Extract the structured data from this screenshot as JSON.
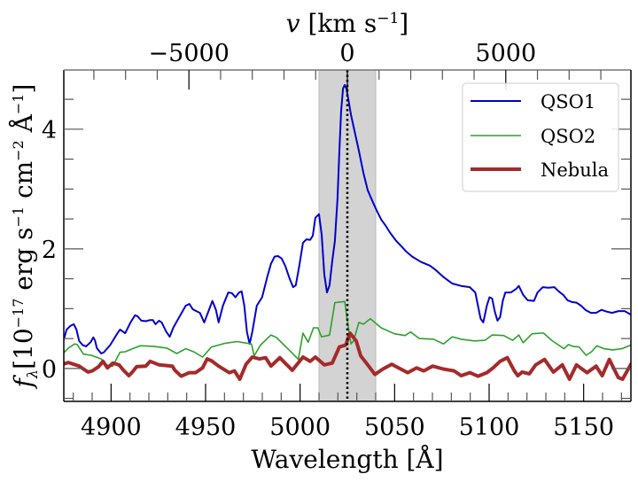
{
  "chart_data": {
    "type": "line",
    "title": "",
    "xlabel": "Wavelength [Å]",
    "ylabel": "f_λ [10^-17 erg s^-1 cm^-2 Å^-1]",
    "ylabel_parts": {
      "f": "f",
      "lambda": "λ",
      "bracket_open": "[10",
      "exp1": "−17",
      "erg": " erg s",
      "exp2": "−1",
      "cm": " cm",
      "exp3": "−2",
      "ang": " Å",
      "exp4": "−1",
      "bracket_close": "]"
    },
    "top_xlabel": "v [km s^-1]",
    "top_xlabel_parts": {
      "v": "v",
      "unit": " [km s",
      "exp": "−1",
      "close": "]"
    },
    "xlim": [
      4875,
      5175
    ],
    "ylim": [
      -0.55,
      4.99
    ],
    "xticks": [
      4900,
      4950,
      5000,
      5050,
      5100,
      5150
    ],
    "xtick_labels": [
      "4900",
      "4950",
      "5000",
      "5050",
      "5100",
      "5150"
    ],
    "xminor_step": 10,
    "yticks": [
      0,
      2,
      4
    ],
    "ytick_labels": [
      "0",
      "2",
      "4"
    ],
    "yminor_step": 0.5,
    "top_axis": {
      "reference_wavelength": 5025,
      "ticks": [
        -5000,
        0,
        5000
      ],
      "tick_labels": [
        "−5000",
        "0",
        "5000"
      ],
      "minor_step": 1000
    },
    "shaded_region": {
      "x0": 5010,
      "x1": 5040,
      "color": "#d3d3d3"
    },
    "vline": {
      "x": 5025,
      "style": "dotted",
      "color": "#000000"
    },
    "grid": false,
    "legend": {
      "placement": "top-right",
      "entries": [
        "QSO1",
        "QSO2",
        "Nebula"
      ]
    },
    "series": [
      {
        "name": "QSO1",
        "color": "#0000cc",
        "x": [
          4874.6,
          4876.5,
          4878.4,
          4880.3,
          4881.7,
          4883.1,
          4885.0,
          4886.8,
          4889.2,
          4890.6,
          4891.5,
          4892.5,
          4894.8,
          4896.2,
          4899.5,
          4902.8,
          4904.7,
          4907.5,
          4910.3,
          4912.7,
          4914.1,
          4916.0,
          4918.3,
          4920.7,
          4922.1,
          4923.5,
          4925.4,
          4926.8,
          4929.1,
          4931.0,
          4932.9,
          4935.2,
          4939.5,
          4941.4,
          4943.2,
          4945.1,
          4947.0,
          4949.3,
          4953.6,
          4955.5,
          4956.9,
          4959.2,
          4962.0,
          4963.9,
          4965.8,
          4967.7,
          4969.1,
          4970.5,
          4971.9,
          4973.3,
          4974.7,
          4977.1,
          4979.9,
          4982.7,
          4984.6,
          4986.5,
          4988.3,
          4990.2,
          4992.1,
          4994.5,
          4996.3,
          4997.7,
          4999.6,
          5001.5,
          5003.4,
          5005.3,
          5006.7,
          5008.1,
          5010.0,
          5011.4,
          5012.8,
          5014.2,
          5015.6,
          5017.0,
          5018.4,
          5019.8,
          5020.8,
          5021.7,
          5022.7,
          5023.6,
          5024.5,
          5025.5,
          5026.9,
          5028.8,
          5031.1,
          5033.5,
          5035.8,
          5038.2,
          5040.5,
          5042.9,
          5045.2,
          5047.6,
          5050.9,
          5053.7,
          5056.0,
          5059.3,
          5064.0,
          5068.7,
          5072.0,
          5075.8,
          5080.5,
          5085.2,
          5089.8,
          5092.7,
          5094.1,
          5095.5,
          5096.9,
          5098.8,
          5100.2,
          5101.6,
          5103.0,
          5104.4,
          5105.8,
          5107.2,
          5108.6,
          5111.5,
          5114.3,
          5115.7,
          5118.0,
          5120.4,
          5123.7,
          5125.6,
          5128.4,
          5131.3,
          5134.5,
          5136.8,
          5139.2,
          5141.5,
          5143.9,
          5146.2,
          5148.6,
          5150.9,
          5153.8,
          5156.6,
          5159.4,
          5162.2,
          5165.0,
          5168.4,
          5171.7,
          5175.0
        ],
        "y": [
          0.44,
          0.65,
          0.71,
          0.74,
          0.65,
          0.46,
          0.39,
          0.37,
          0.44,
          0.52,
          0.47,
          0.34,
          0.25,
          0.27,
          0.39,
          0.56,
          0.65,
          0.59,
          0.77,
          0.89,
          0.87,
          0.8,
          0.79,
          0.81,
          0.81,
          0.74,
          0.8,
          0.77,
          0.62,
          0.53,
          0.68,
          0.81,
          1.05,
          1.08,
          0.99,
          0.96,
          0.93,
          0.77,
          1.13,
          0.98,
          0.77,
          1.05,
          1.27,
          1.26,
          1.19,
          1.27,
          1.29,
          1.05,
          0.61,
          0.41,
          0.61,
          1.05,
          1.19,
          1.54,
          1.75,
          1.87,
          1.88,
          1.84,
          1.72,
          1.5,
          1.36,
          1.39,
          1.72,
          2.1,
          2.16,
          2.15,
          2.22,
          2.52,
          2.58,
          2.24,
          1.57,
          1.27,
          1.39,
          1.79,
          2.13,
          2.84,
          3.64,
          4.31,
          4.68,
          4.74,
          4.68,
          4.5,
          4.24,
          3.97,
          3.64,
          3.27,
          2.98,
          2.8,
          2.64,
          2.49,
          2.39,
          2.27,
          2.13,
          2.04,
          1.96,
          1.87,
          1.78,
          1.72,
          1.64,
          1.53,
          1.42,
          1.38,
          1.36,
          1.27,
          1.05,
          0.83,
          0.77,
          1.05,
          1.19,
          1.17,
          0.95,
          0.8,
          0.86,
          1.13,
          1.27,
          1.27,
          1.33,
          1.38,
          1.23,
          1.14,
          1.13,
          1.27,
          1.36,
          1.35,
          1.36,
          1.29,
          1.23,
          1.14,
          1.11,
          1.1,
          1.05,
          0.98,
          0.93,
          0.93,
          0.98,
          0.95,
          0.93,
          0.96,
          0.96,
          0.9
        ]
      },
      {
        "name": "QSO2",
        "color": "#2ca02c",
        "x": [
          4874.6,
          4877.4,
          4880.7,
          4882.1,
          4885.4,
          4889.6,
          4894.8,
          4897.2,
          4899.1,
          4900.9,
          4904.7,
          4907.5,
          4912.2,
          4915.5,
          4922.5,
          4929.6,
          4934.7,
          4939.5,
          4943.7,
          4948.4,
          4953.1,
          4960.2,
          4966.7,
          4974.3,
          4975.7,
          4979.0,
          4984.6,
          4987.4,
          4995.4,
          4999.1,
          5001.5,
          5004.3,
          5007.1,
          5009.4,
          5011.3,
          5014.6,
          5015.6,
          5018.4,
          5023.6,
          5025.0,
          5026.9,
          5028.3,
          5031.1,
          5033.5,
          5037.2,
          5042.9,
          5049.9,
          5055.5,
          5058.4,
          5063.1,
          5070.6,
          5075.8,
          5080.5,
          5085.2,
          5092.2,
          5097.8,
          5101.6,
          5107.7,
          5112.4,
          5115.7,
          5118.0,
          5122.7,
          5127.4,
          5128.8,
          5133.1,
          5136.8,
          5139.6,
          5141.9,
          5144.3,
          5147.6,
          5151.3,
          5154.2,
          5157.0,
          5160.8,
          5165.4,
          5170.1,
          5175.0
        ],
        "y": [
          0.25,
          0.34,
          0.41,
          0.4,
          0.24,
          0.22,
          0.16,
          0.07,
          0.04,
          0.04,
          0.27,
          0.28,
          0.34,
          0.38,
          0.37,
          0.34,
          0.25,
          0.33,
          0.28,
          0.19,
          0.36,
          0.42,
          0.45,
          0.41,
          0.21,
          0.39,
          0.56,
          0.52,
          0.27,
          0.15,
          0.59,
          0.44,
          0.68,
          0.68,
          0.53,
          0.55,
          0.56,
          1.1,
          1.12,
          0.8,
          0.41,
          0.46,
          0.77,
          0.74,
          0.83,
          0.68,
          0.58,
          0.55,
          0.61,
          0.5,
          0.49,
          0.41,
          0.53,
          0.49,
          0.46,
          0.47,
          0.56,
          0.55,
          0.47,
          0.56,
          0.43,
          0.58,
          0.59,
          0.59,
          0.47,
          0.39,
          0.33,
          0.4,
          0.37,
          0.36,
          0.22,
          0.28,
          0.38,
          0.33,
          0.31,
          0.33,
          0.39
        ]
      },
      {
        "name": "Nebula",
        "color": "#a52a2a",
        "x": [
          4874.6,
          4877.4,
          4883.1,
          4887.8,
          4890.1,
          4893.4,
          4895.7,
          4898.1,
          4900.9,
          4904.2,
          4906.6,
          4909.4,
          4911.3,
          4913.6,
          4918.3,
          4920.7,
          4925.4,
          4932.4,
          4933.8,
          4937.1,
          4941.4,
          4944.7,
          4948.4,
          4950.8,
          4953.1,
          4956.9,
          4962.5,
          4965.3,
          4968.1,
          4971.4,
          4974.7,
          4978.5,
          4981.8,
          4984.6,
          4989.3,
          4992.1,
          4995.9,
          5001.5,
          5005.3,
          5008.1,
          5012.8,
          5017.0,
          5020.8,
          5024.1,
          5026.4,
          5029.7,
          5032.1,
          5035.8,
          5039.6,
          5043.8,
          5048.5,
          5053.2,
          5056.9,
          5061.6,
          5065.4,
          5070.1,
          5075.8,
          5081.5,
          5085.2,
          5089.8,
          5094.1,
          5098.8,
          5102.1,
          5105.8,
          5109.6,
          5113.3,
          5115.2,
          5117.5,
          5121.3,
          5124.6,
          5129.3,
          5134.0,
          5138.7,
          5142.5,
          5146.2,
          5151.8,
          5156.6,
          5159.8,
          5163.6,
          5168.3,
          5170.6,
          5175.0
        ],
        "y": [
          0.07,
          0.1,
          0.04,
          -0.06,
          -0.04,
          0.03,
          0.12,
          0.01,
          0.09,
          0.06,
          -0.03,
          -0.12,
          -0.06,
          0.03,
          0.04,
          0.12,
          0.06,
          0.04,
          -0.03,
          -0.13,
          -0.07,
          -0.07,
          0.01,
          0.16,
          0.13,
          0.04,
          -0.07,
          -0.04,
          -0.18,
          0.07,
          0.19,
          0.16,
          0.18,
          0.04,
          0.18,
          0.09,
          -0.03,
          0.19,
          0.12,
          0.19,
          0.06,
          0.09,
          0.36,
          0.39,
          0.59,
          0.46,
          0.21,
          0.06,
          -0.1,
          -0.01,
          0.07,
          -0.01,
          -0.07,
          0.01,
          -0.04,
          0.04,
          -0.01,
          -0.04,
          -0.12,
          -0.07,
          -0.13,
          -0.07,
          0.01,
          0.12,
          0.18,
          -0.04,
          -0.12,
          -0.06,
          -0.09,
          0.06,
          0.15,
          -0.06,
          0.06,
          -0.18,
          0.06,
          -0.07,
          0.04,
          -0.12,
          0.15,
          -0.15,
          -0.18,
          0.07
        ]
      }
    ]
  }
}
